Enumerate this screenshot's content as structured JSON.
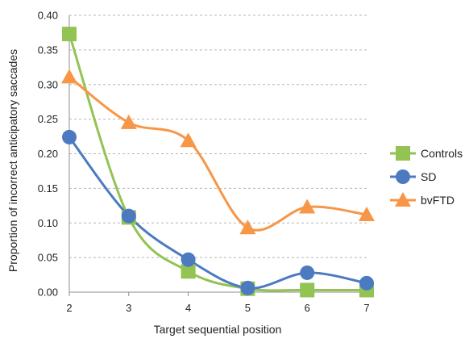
{
  "chart_data": {
    "type": "line",
    "smooth": true,
    "x": [
      2,
      3,
      4,
      5,
      6,
      7
    ],
    "series": [
      {
        "name": "Controls",
        "values": [
          0.373,
          0.108,
          0.03,
          0.005,
          0.003,
          0.003
        ],
        "color": "#92c353",
        "marker": "square"
      },
      {
        "name": "SD",
        "values": [
          0.224,
          0.11,
          0.047,
          0.006,
          0.028,
          0.013
        ],
        "color": "#4c7ac0",
        "marker": "circle"
      },
      {
        "name": "bvFTD",
        "values": [
          0.311,
          0.245,
          0.219,
          0.093,
          0.123,
          0.112
        ],
        "color": "#f79646",
        "marker": "triangle"
      }
    ],
    "xlabel": "Target sequential position",
    "ylabel": "Proportion of incorrect anticipatory saccades",
    "ylim": [
      0,
      0.4
    ],
    "xlim": [
      2,
      7
    ],
    "y_ticks": [
      "0.00",
      "0.05",
      "0.10",
      "0.15",
      "0.20",
      "0.25",
      "0.30",
      "0.35",
      "0.40"
    ],
    "x_ticks": [
      "2",
      "3",
      "4",
      "5",
      "6",
      "7"
    ],
    "grid": "horizontal dashed",
    "legend_position": "right"
  }
}
